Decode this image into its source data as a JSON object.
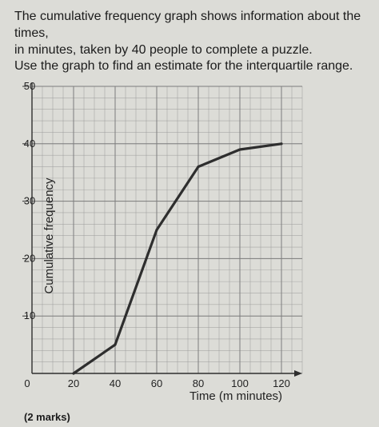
{
  "question": {
    "line1": "The cumulative frequency graph shows information about the times,",
    "line2": "in minutes, taken by 40 people to complete a puzzle.",
    "instruction": "Use the graph to find an estimate for the interquartile range."
  },
  "marks_label": "(2 marks)",
  "colors": {
    "grid": "#9a9a9a",
    "curve": "#2e2e2e",
    "axis": "#2e2e2e"
  },
  "chart_data": {
    "type": "line",
    "title": "",
    "xlabel": "Time (m minutes)",
    "ylabel": "Cumulative frequency",
    "xlim": [
      0,
      120
    ],
    "ylim": [
      0,
      50
    ],
    "x_ticks": [
      0,
      20,
      40,
      60,
      80,
      100,
      120
    ],
    "y_ticks": [
      10,
      20,
      30,
      40,
      50
    ],
    "x_tick_labels": [
      "0",
      "20",
      "40",
      "60",
      "80",
      "100",
      "120"
    ],
    "y_tick_labels": [
      "10",
      "20",
      "30",
      "40",
      "50"
    ],
    "grid": true,
    "series": [
      {
        "x": [
          20,
          40,
          60,
          80,
          100,
          120
        ],
        "y": [
          0,
          5,
          25,
          36,
          39,
          40
        ]
      }
    ]
  }
}
